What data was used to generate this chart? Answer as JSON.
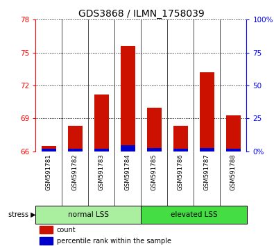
{
  "title": "GDS3868 / ILMN_1758039",
  "samples": [
    "GSM591781",
    "GSM591782",
    "GSM591783",
    "GSM591784",
    "GSM591785",
    "GSM591786",
    "GSM591787",
    "GSM591788"
  ],
  "red_tops": [
    66.5,
    68.3,
    71.2,
    75.6,
    70.0,
    68.3,
    73.2,
    69.3
  ],
  "blue_heights": [
    0.25,
    0.22,
    0.22,
    0.55,
    0.28,
    0.22,
    0.28,
    0.22
  ],
  "baseline": 66,
  "ylim_left": [
    66,
    78
  ],
  "yticks_left": [
    66,
    69,
    72,
    75,
    78
  ],
  "ylim_right": [
    0,
    100
  ],
  "yticks_right": [
    0,
    25,
    50,
    75,
    100
  ],
  "yright_labels": [
    "0%",
    "25",
    "50",
    "75",
    "100%"
  ],
  "bar_color_red": "#CC1100",
  "bar_color_blue": "#0000CC",
  "legend_count": "count",
  "legend_pct": "percentile rank within the sample",
  "title_fontsize": 10,
  "tick_fontsize": 7.5,
  "bar_width": 0.55,
  "normal_lss_color": "#AAEEA0",
  "elevated_lss_color": "#44DD44",
  "sample_box_color": "#D4D4D4",
  "grid_color": "black"
}
